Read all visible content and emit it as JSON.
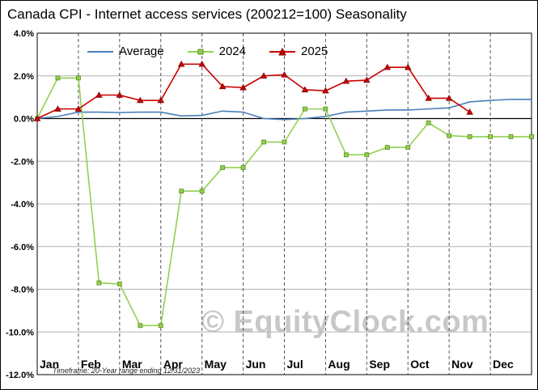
{
  "footnote": "Timeframe: 20-Year range ending 12/31/2023",
  "watermark": "© EquityClock.com",
  "colors": {
    "grid": "#b3b3b3",
    "dashed": "#555555",
    "zero_line": "#000000",
    "axis": "#000000",
    "watermark": "#c8c8c8",
    "background": "#ffffff"
  },
  "chart_data": {
    "type": "line",
    "title": "Canada CPI - Internet access services (200212=100) Seasonality",
    "xlabel": "",
    "ylabel": "",
    "categories": [
      "Jan",
      "Feb",
      "Mar",
      "Apr",
      "May",
      "Jun",
      "Jul",
      "Aug",
      "Sep",
      "Oct",
      "Nov",
      "Dec"
    ],
    "points_per_month": 2,
    "x_unit": "semi-monthly",
    "ylim": [
      -12,
      4
    ],
    "ytick_step": 2,
    "ytick_format": "percent",
    "grid": true,
    "legend_position": "top-left",
    "series": [
      {
        "name": "Average",
        "color": "#4a7ebb",
        "marker": "none",
        "marker_edge": "#2f5a8f",
        "values": [
          0.0,
          0.1,
          0.3,
          0.3,
          0.28,
          0.3,
          0.3,
          0.12,
          0.15,
          0.35,
          0.3,
          0.0,
          -0.05,
          0.0,
          0.1,
          0.3,
          0.35,
          0.4,
          0.4,
          0.45,
          0.5,
          0.78,
          0.85,
          0.9,
          0.9
        ]
      },
      {
        "name": "2024",
        "color": "#92d050",
        "marker": "square",
        "marker_edge": "#5a8f1f",
        "values": [
          0.0,
          1.9,
          1.9,
          -7.7,
          -7.75,
          -9.7,
          -9.7,
          -3.4,
          -3.4,
          -2.3,
          -2.3,
          -1.1,
          -1.1,
          0.45,
          0.45,
          -1.7,
          -1.7,
          -1.35,
          -1.35,
          -0.2,
          -0.8,
          -0.85,
          -0.85,
          -0.85,
          -0.85
        ]
      },
      {
        "name": "2025",
        "color": "#cc0000",
        "marker": "triangle",
        "marker_edge": "#7f0000",
        "values": [
          0.0,
          0.45,
          0.45,
          1.1,
          1.1,
          0.85,
          0.85,
          2.55,
          2.55,
          1.5,
          1.45,
          2.0,
          2.05,
          1.35,
          1.3,
          1.75,
          1.8,
          2.4,
          2.4,
          0.95,
          0.95,
          0.3
        ]
      }
    ]
  }
}
